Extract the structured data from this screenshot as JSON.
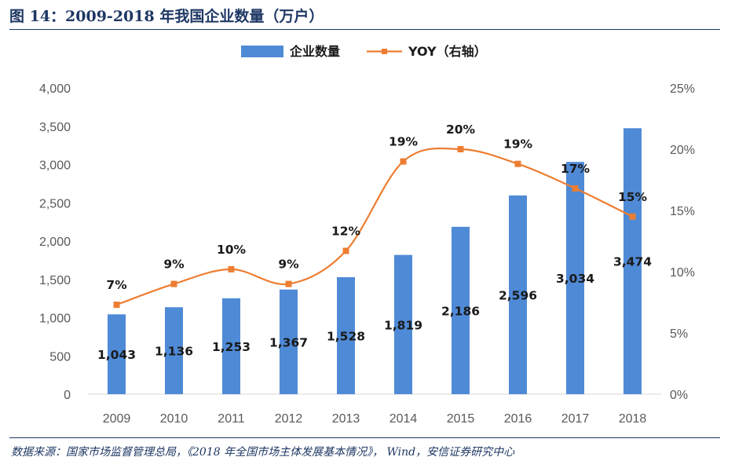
{
  "figure": {
    "title": "图 14：2009-2018 年我国企业数量（万户）",
    "source": "数据来源：国家市场监督管理总局，《2018 年全国市场主体发展基本情况》， Wind，安信证券研究中心"
  },
  "chart_data": {
    "type": "bar",
    "categories": [
      "2009",
      "2010",
      "2011",
      "2012",
      "2013",
      "2014",
      "2015",
      "2016",
      "2017",
      "2018"
    ],
    "series": [
      {
        "name": "企业数量",
        "type": "bar",
        "axis": "left",
        "color": "#4f8ad6",
        "values": [
          1043,
          1136,
          1253,
          1367,
          1528,
          1819,
          2186,
          2596,
          3034,
          3474
        ],
        "labels": [
          "1,043",
          "1,136",
          "1,253",
          "1,367",
          "1,528",
          "1,819",
          "2,186",
          "2,596",
          "3,034",
          "3,474"
        ]
      },
      {
        "name": "YOY（右轴）",
        "type": "line",
        "axis": "right",
        "color": "#ed7d31",
        "values": [
          7.3,
          9.0,
          10.2,
          9.0,
          11.7,
          19.0,
          20.0,
          18.8,
          16.8,
          14.5
        ],
        "labels": [
          "7%",
          "9%",
          "10%",
          "9%",
          "12%",
          "19%",
          "20%",
          "19%",
          "17%",
          "15%"
        ]
      }
    ],
    "y_left": {
      "min": 0,
      "max": 4000,
      "ticks": [
        0,
        500,
        1000,
        1500,
        2000,
        2500,
        3000,
        3500,
        4000
      ],
      "tick_labels": [
        "0",
        "500",
        "1,000",
        "1,500",
        "2,000",
        "2,500",
        "3,000",
        "3,500",
        "4,000"
      ]
    },
    "y_right": {
      "min": 0,
      "max": 25,
      "ticks": [
        0,
        5,
        10,
        15,
        20,
        25
      ],
      "tick_labels": [
        "0%",
        "5%",
        "10%",
        "15%",
        "20%",
        "25%"
      ]
    },
    "legend_position": "top-center",
    "grid": false
  }
}
